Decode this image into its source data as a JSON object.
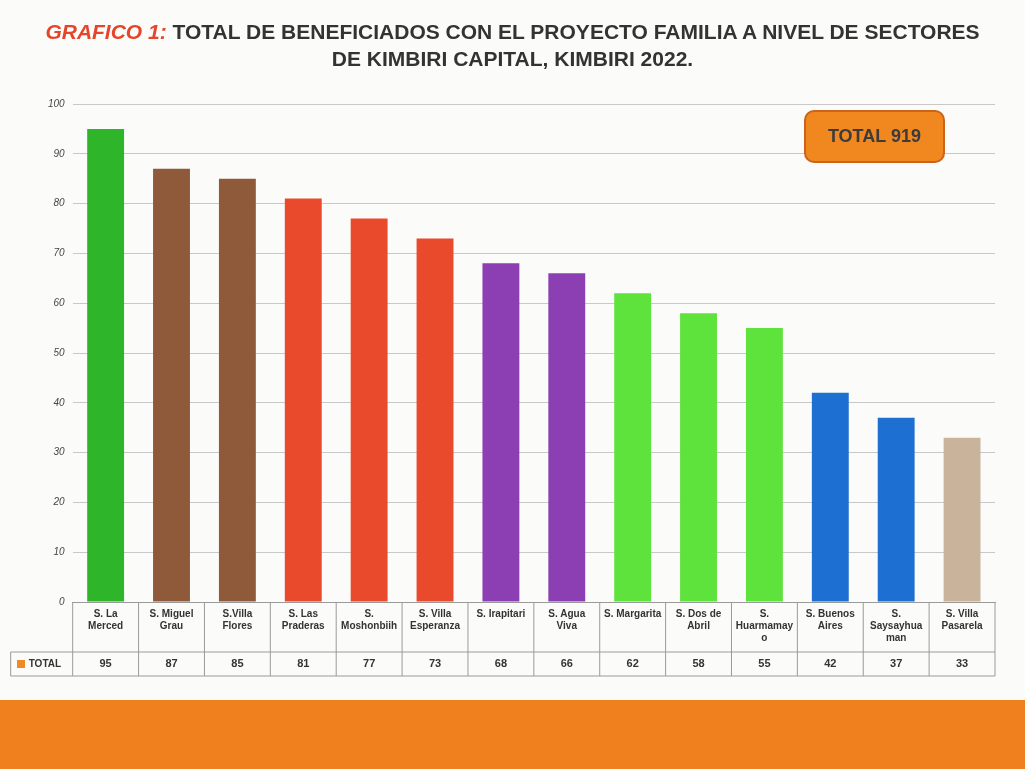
{
  "chart_data": {
    "type": "bar",
    "title": "GRAFICO 1: TOTAL DE BENEFICIADOS CON EL PROYECTO FAMILIA A NIVEL DE SECTORES DE KIMBIRI CAPITAL, KIMBIRI 2022.",
    "categories": [
      "S. La Merced",
      "S. Miguel Grau",
      "S.Villa Flores",
      "S. Las Praderas",
      "S. Moshonbiih",
      "S. Villa Esperanza",
      "S. Irapitari",
      "S. Agua Viva",
      "S. Margarita",
      "S. Dos de Abril",
      "S. Huarmamayo",
      "S. Buenos Aires",
      "S. Saysayhuaman",
      "S. Villa Pasarela"
    ],
    "series": [
      {
        "name": "TOTAL",
        "color": "#f08a24",
        "colors": [
          "#2fb52a",
          "#8e5a3a",
          "#8e5a3a",
          "#ea4a2c",
          "#ea4a2c",
          "#ea4a2c",
          "#8c3fb3",
          "#8c3fb3",
          "#5ee23c",
          "#5ee23c",
          "#5ee23c",
          "#1d6fd1",
          "#1d6fd1",
          "#c9b49b"
        ],
        "values": [
          95,
          87,
          85,
          81,
          77,
          73,
          68,
          66,
          62,
          58,
          55,
          42,
          37,
          33
        ]
      }
    ],
    "ylim": [
      0,
      100
    ],
    "yticks": [
      0,
      10,
      20,
      30,
      40,
      50,
      60,
      70,
      80,
      90,
      100
    ],
    "grid": "y",
    "legend": "bottom",
    "data_labels": true,
    "annotations": [
      "TOTAL 919"
    ]
  }
}
